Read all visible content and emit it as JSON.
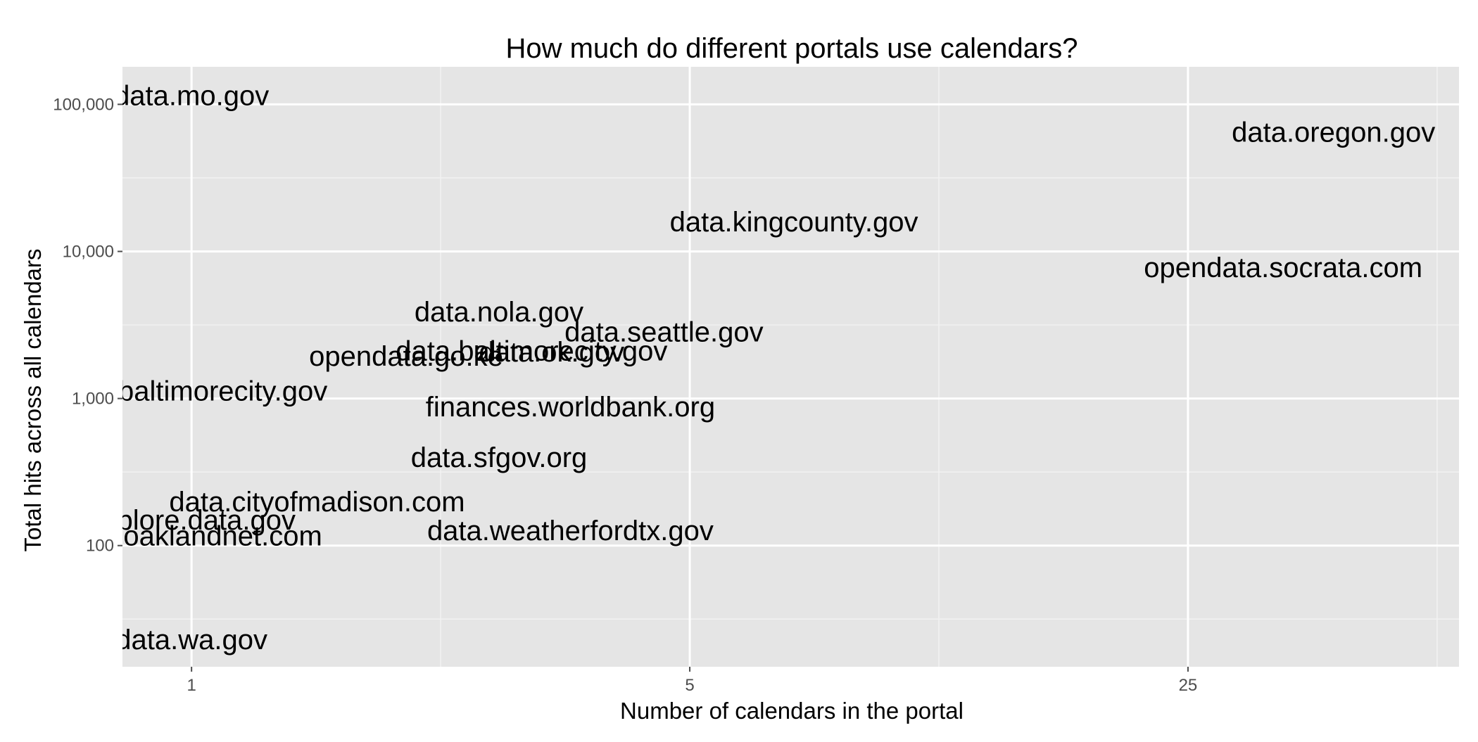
{
  "chart_data": {
    "type": "scatter",
    "title": "How much do different portals use calendars?",
    "xlabel": "Number of calendars in the portal",
    "ylabel": "Total hits across all calendars",
    "x_scale": "log",
    "y_scale": "log",
    "xlim": [
      0.8,
      60
    ],
    "ylim": [
      15,
      180000
    ],
    "x_ticks": [
      {
        "value": 1,
        "label": "1"
      },
      {
        "value": 5,
        "label": "5"
      },
      {
        "value": 25,
        "label": "25"
      }
    ],
    "y_ticks": [
      {
        "value": 100,
        "label": "100"
      },
      {
        "value": 1000,
        "label": "1,000"
      },
      {
        "value": 10000,
        "label": "10,000"
      },
      {
        "value": 100000,
        "label": "100,000"
      }
    ],
    "grid": true,
    "legend": "none",
    "colors": {
      "panel": "#e5e5e5",
      "grid": "#ffffff",
      "text": "#000000",
      "tick_text": "#4d4d4d"
    },
    "points": [
      {
        "label": "data.mo.gov",
        "x": 1.0,
        "y": 115000
      },
      {
        "label": "data.oregon.gov",
        "x": 40.0,
        "y": 65000
      },
      {
        "label": "data.kingcounty.gov",
        "x": 7.0,
        "y": 16000
      },
      {
        "label": "opendata.socrata.com",
        "x": 34.0,
        "y": 7800
      },
      {
        "label": "data.nola.gov",
        "x": 2.7,
        "y": 3900
      },
      {
        "label": "data.seattle.gov",
        "x": 4.6,
        "y": 2850
      },
      {
        "label": "data.baltimorecity.gov",
        "x": 3.0,
        "y": 2120
      },
      {
        "label": "data.ok.gov",
        "x": 3.2,
        "y": 2080
      },
      {
        "label": "opendata.go.ke",
        "x": 2.0,
        "y": 1950
      },
      {
        "label": "data.baltimorecity.gov",
        "x": 1.0,
        "y": 1130
      },
      {
        "label": "finances.worldbank.org",
        "x": 3.4,
        "y": 880
      },
      {
        "label": "data.sfgov.org",
        "x": 2.7,
        "y": 400
      },
      {
        "label": "data.cityofmadison.com",
        "x": 1.5,
        "y": 200
      },
      {
        "label": "explore.data.gov",
        "x": 1.0,
        "y": 150
      },
      {
        "label": "data.oaklandnet.com",
        "x": 1.0,
        "y": 117
      },
      {
        "label": "data.weatherfordtx.gov",
        "x": 3.4,
        "y": 127
      },
      {
        "label": "data.wa.gov",
        "x": 1.0,
        "y": 23
      }
    ]
  }
}
